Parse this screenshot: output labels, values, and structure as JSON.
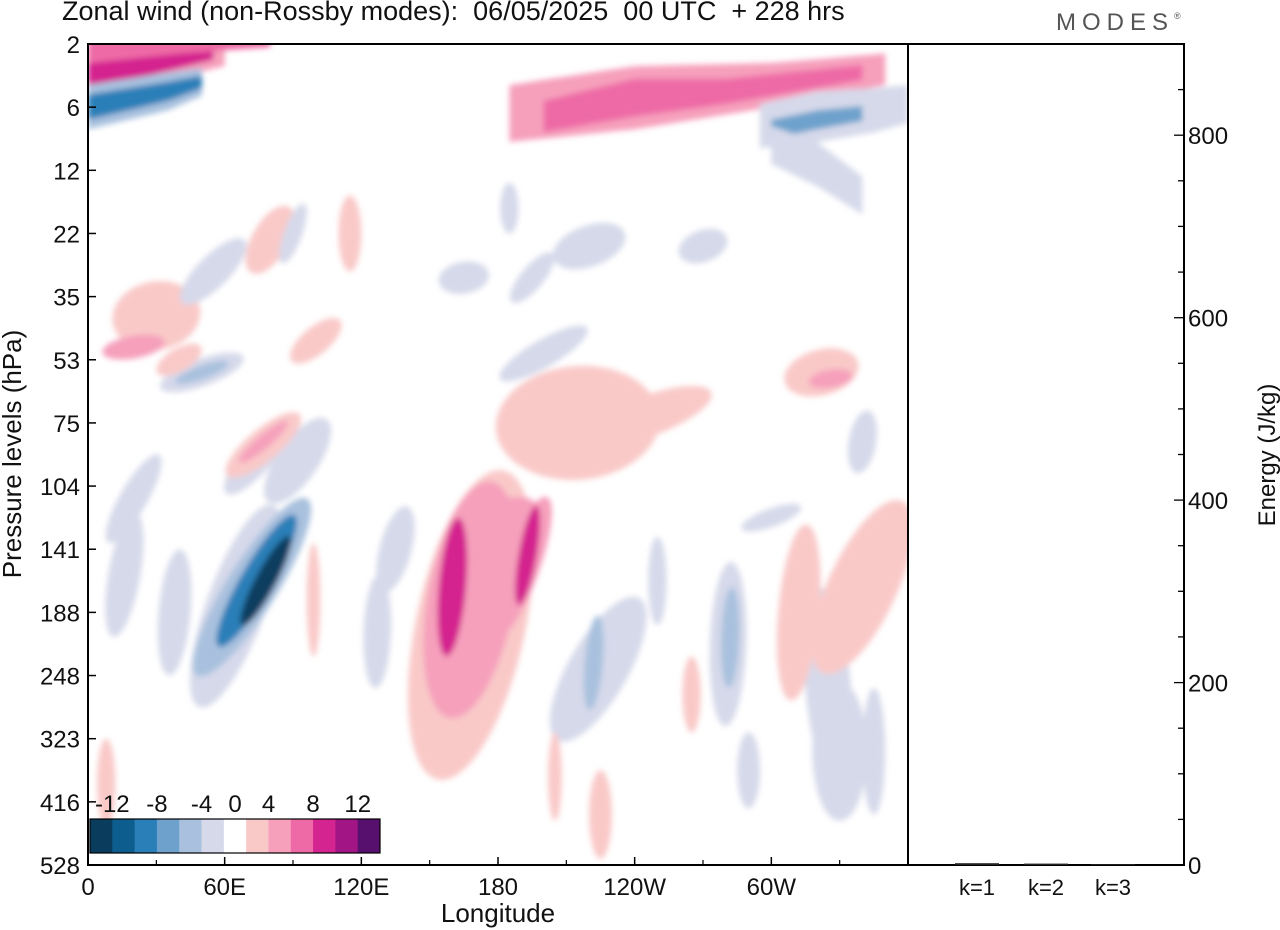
{
  "header": {
    "title": "Zonal wind (non-Rossby modes):  06/05/2025  00 UTC  + 228 hrs",
    "brand": "MODES"
  },
  "colors": {
    "levels": [
      "#0a3c5e",
      "#0d5e8f",
      "#2a7fb8",
      "#6ea2cc",
      "#a9c1de",
      "#d6d9ea",
      "#ffffff",
      "#f9c9c8",
      "#f6a0bc",
      "#ee6aa6",
      "#d4248f",
      "#a11585",
      "#57106e"
    ],
    "frame": "#000000"
  },
  "chart_data": [
    {
      "type": "heatmap",
      "xlabel": "Longitude",
      "ylabel": "Pressure levels (hPa)",
      "x_ticks": [
        "0",
        "60E",
        "120E",
        "180",
        "120W",
        "60W"
      ],
      "x_tick_values": [
        0,
        60,
        120,
        180,
        240,
        300
      ],
      "xlim": [
        0,
        360
      ],
      "y_ticks": [
        "2",
        "6",
        "12",
        "22",
        "35",
        "53",
        "75",
        "104",
        "141",
        "188",
        "248",
        "323",
        "416",
        "528"
      ],
      "colorbar": {
        "labels": [
          "-12",
          "-8",
          "-4",
          "0",
          "4",
          "8",
          "12"
        ],
        "bounds": [
          -14,
          -12,
          -10,
          -8,
          -6,
          -4,
          -2,
          2,
          4,
          6,
          8,
          10,
          12,
          14
        ]
      },
      "features": [
        {
          "lon": 78,
          "lev": 8.5,
          "w": 9,
          "h": 1.6,
          "angle": -62,
          "value": -13
        },
        {
          "lon": 74,
          "lev": 8.5,
          "w": 14,
          "h": 2.4,
          "angle": -60,
          "value": -9
        },
        {
          "lon": 72,
          "lev": 8.6,
          "w": 22,
          "h": 3.3,
          "angle": -58,
          "value": -5
        },
        {
          "lon": 65,
          "lev": 8.9,
          "w": 26,
          "h": 3.4,
          "angle": -70,
          "value": -3
        },
        {
          "lon": 160,
          "lev": 8.6,
          "w": 12,
          "h": 2.2,
          "angle": -85,
          "value": 8
        },
        {
          "lon": 168,
          "lev": 8.8,
          "w": 38,
          "h": 3.8,
          "angle": -80,
          "value": 5
        },
        {
          "lon": 168,
          "lev": 9.2,
          "w": 48,
          "h": 5.0,
          "angle": -78,
          "value": 3
        },
        {
          "lon": 178,
          "lev": 7.7,
          "w": 22,
          "h": 1.6,
          "angle": -30,
          "value": 4
        },
        {
          "lon": 193,
          "lev": 8.1,
          "w": 8,
          "h": 1.6,
          "angle": -80,
          "value": 8
        },
        {
          "lon": 190,
          "lev": 8.3,
          "w": 16,
          "h": 2.4,
          "angle": -70,
          "value": 5
        },
        {
          "lon": 222,
          "lev": 9.8,
          "w": 8,
          "h": 1.5,
          "angle": -85,
          "value": -5
        },
        {
          "lon": 224,
          "lev": 9.9,
          "w": 26,
          "h": 2.6,
          "angle": -60,
          "value": -3
        },
        {
          "lon": 282,
          "lev": 9.4,
          "w": 8,
          "h": 1.6,
          "angle": -88,
          "value": -5
        },
        {
          "lon": 281,
          "lev": 9.5,
          "w": 16,
          "h": 2.6,
          "angle": -88,
          "value": -3
        },
        {
          "lon": 325,
          "lev": 10.2,
          "w": 20,
          "h": 3.2,
          "angle": -95,
          "value": -3
        },
        {
          "lon": 340,
          "lev": 8.6,
          "w": 30,
          "h": 3.0,
          "angle": -65,
          "value": 3
        },
        {
          "lon": 312,
          "lev": 9.0,
          "w": 18,
          "h": 2.8,
          "angle": -85,
          "value": 3
        },
        {
          "lon": 99,
          "lev": 8.8,
          "w": 6,
          "h": 1.8,
          "angle": -90,
          "value": 3
        },
        {
          "lon": 127,
          "lev": 9.3,
          "w": 12,
          "h": 1.8,
          "angle": -88,
          "value": -3
        },
        {
          "lon": 135,
          "lev": 8.0,
          "w": 14,
          "h": 1.4,
          "angle": -75,
          "value": -3
        },
        {
          "lon": 16,
          "lev": 8.4,
          "w": 14,
          "h": 2.0,
          "angle": -80,
          "value": -3
        },
        {
          "lon": 38,
          "lev": 9.0,
          "w": 14,
          "h": 2.0,
          "angle": -85,
          "value": -3
        },
        {
          "lon": 20,
          "lev": 7.2,
          "w": 12,
          "h": 1.6,
          "angle": -60,
          "value": -3
        },
        {
          "lon": 92,
          "lev": 6.6,
          "w": 18,
          "h": 1.6,
          "angle": -55,
          "value": -3
        },
        {
          "lon": 75,
          "lev": 6.5,
          "w": 14,
          "h": 1.6,
          "angle": -50,
          "value": -3
        },
        {
          "lon": 77,
          "lev": 6.3,
          "w": 6,
          "h": 1.0,
          "angle": -40,
          "value": 5
        },
        {
          "lon": 77,
          "lev": 6.35,
          "w": 14,
          "h": 1.5,
          "angle": -40,
          "value": 3
        },
        {
          "lon": 50,
          "lev": 5.2,
          "w": 6,
          "h": 0.9,
          "angle": -20,
          "value": -5
        },
        {
          "lon": 50,
          "lev": 5.2,
          "w": 12,
          "h": 1.4,
          "angle": -20,
          "value": -3
        },
        {
          "lon": 30,
          "lev": 4.3,
          "w": 30,
          "h": 1.4,
          "angle": -10,
          "value": 3
        },
        {
          "lon": 20,
          "lev": 4.8,
          "w": 10,
          "h": 1.0,
          "angle": -10,
          "value": 4
        },
        {
          "lon": 215,
          "lev": 6.0,
          "w": 50,
          "h": 2.6,
          "angle": -5,
          "value": 3
        },
        {
          "lon": 245,
          "lev": 5.9,
          "w": 18,
          "h": 2.2,
          "angle": -20,
          "value": 3
        },
        {
          "lon": 322,
          "lev": 5.2,
          "w": 20,
          "h": 1.2,
          "angle": -15,
          "value": 3
        },
        {
          "lon": 326,
          "lev": 5.3,
          "w": 8,
          "h": 0.7,
          "angle": -10,
          "value": 5
        },
        {
          "lon": 340,
          "lev": 6.3,
          "w": 12,
          "h": 1.0,
          "angle": -80,
          "value": -3
        },
        {
          "lon": 200,
          "lev": 4.9,
          "w": 12,
          "h": 1.6,
          "angle": -30,
          "value": -3
        },
        {
          "lon": 220,
          "lev": 3.2,
          "w": 18,
          "h": 1.2,
          "angle": -20,
          "value": -3
        },
        {
          "lon": 165,
          "lev": 3.7,
          "w": 14,
          "h": 0.8,
          "angle": -10,
          "value": -3
        },
        {
          "lon": 100,
          "lev": 4.7,
          "w": 12,
          "h": 1.0,
          "angle": -40,
          "value": 3
        },
        {
          "lon": 80,
          "lev": 3.1,
          "w": 16,
          "h": 1.2,
          "angle": -60,
          "value": 3
        },
        {
          "lon": 55,
          "lev": 3.6,
          "w": 14,
          "h": 1.4,
          "angle": -45,
          "value": -3
        },
        {
          "lon": 90,
          "lev": 3.0,
          "w": 8,
          "h": 1.0,
          "angle": -70,
          "value": -3
        },
        {
          "lon": 195,
          "lev": 3.7,
          "w": 10,
          "h": 1.0,
          "angle": -50,
          "value": -3
        },
        {
          "lon": 330,
          "lev": 11.2,
          "w": 24,
          "h": 2.2,
          "angle": -90,
          "value": -3
        },
        {
          "lon": 345,
          "lev": 11.2,
          "w": 10,
          "h": 2.0,
          "angle": -90,
          "value": -3
        },
        {
          "lon": 225,
          "lev": 12.2,
          "w": 10,
          "h": 1.4,
          "angle": -90,
          "value": 3
        },
        {
          "lon": 290,
          "lev": 11.5,
          "w": 10,
          "h": 1.2,
          "angle": -90,
          "value": -3
        },
        {
          "lon": 8,
          "lev": 11.7,
          "w": 8,
          "h": 1.4,
          "angle": -90,
          "value": 3
        },
        {
          "lon": 270,
          "lev": 3.2,
          "w": 14,
          "h": 0.8,
          "angle": -20,
          "value": -3
        },
        {
          "lon": 350,
          "lev": 8.2,
          "w": 16,
          "h": 1.6,
          "angle": -70,
          "value": 3
        },
        {
          "lon": 115,
          "lev": 3.0,
          "w": 10,
          "h": 1.2,
          "angle": -90,
          "value": 3
        },
        {
          "lon": 185,
          "lev": 2.6,
          "w": 8,
          "h": 0.8,
          "angle": -90,
          "value": -3
        },
        {
          "lon": 300,
          "lev": 7.5,
          "w": 8,
          "h": 1.0,
          "angle": -20,
          "value": -3
        },
        {
          "lon": 40,
          "lev": 5.0,
          "w": 10,
          "h": 0.8,
          "angle": -30,
          "value": 3
        },
        {
          "lon": 250,
          "lev": 8.5,
          "w": 8,
          "h": 1.4,
          "angle": -90,
          "value": -3
        },
        {
          "lon": 265,
          "lev": 10.3,
          "w": 8,
          "h": 1.2,
          "angle": -90,
          "value": 3
        },
        {
          "lon": 205,
          "lev": 11.6,
          "w": 6,
          "h": 1.4,
          "angle": -90,
          "value": 3
        }
      ],
      "jets": [
        {
          "lon": [
            0,
            30,
            60
          ],
          "lev": [
            0.45,
            0.2,
            0.05
          ],
          "halfwidth": [
            0.45,
            0.4,
            0.3
          ],
          "value": 5
        },
        {
          "lon": [
            0,
            30,
            55
          ],
          "lev": [
            0.45,
            0.25,
            0.1
          ],
          "halfwidth": [
            0.28,
            0.22,
            0.15
          ],
          "value": 8
        },
        {
          "lon": [
            0,
            35,
            50
          ],
          "lev": [
            1.0,
            0.75,
            0.6
          ],
          "halfwidth": [
            0.35,
            0.3,
            0.22
          ],
          "value": -5
        },
        {
          "lon": [
            0,
            35,
            50
          ],
          "lev": [
            1.0,
            0.75,
            0.6
          ],
          "halfwidth": [
            0.2,
            0.15,
            0.1
          ],
          "value": -9
        },
        {
          "lon": [
            185,
            240,
            300,
            350
          ],
          "lev": [
            1.1,
            0.85,
            0.65,
            0.4
          ],
          "halfwidth": [
            0.45,
            0.5,
            0.35,
            0.25
          ],
          "value": 4
        },
        {
          "lon": [
            200,
            240,
            280,
            340
          ],
          "lev": [
            1.15,
            0.85,
            0.75,
            0.45
          ],
          "halfwidth": [
            0.25,
            0.3,
            0.2,
            0.12
          ],
          "value": 7
        },
        {
          "lon": [
            295,
            320,
            345,
            360
          ],
          "lev": [
            1.3,
            1.15,
            1.05,
            0.95
          ],
          "halfwidth": [
            0.35,
            0.4,
            0.35,
            0.3
          ],
          "value": -4
        },
        {
          "lon": [
            300,
            320,
            340
          ],
          "lev": [
            1.35,
            1.2,
            1.1
          ],
          "halfwidth": [
            0.15,
            0.15,
            0.12
          ],
          "value": -7
        },
        {
          "lon": [
            300,
            320,
            340
          ],
          "lev": [
            1.6,
            1.9,
            2.4
          ],
          "halfwidth": [
            0.3,
            0.35,
            0.3
          ],
          "value": -4
        },
        {
          "lon": [
            0,
            40,
            80
          ],
          "lev": [
            0.1,
            -0.05,
            -0.1
          ],
          "halfwidth": [
            0.2,
            0.2,
            0.15
          ],
          "value": 6
        }
      ]
    },
    {
      "type": "bar",
      "categories": [
        "k=1",
        "k=2",
        "k=3"
      ],
      "values": [
        2,
        1.5,
        1
      ],
      "ylabel": "Energy (J/kg)",
      "ylim": [
        0,
        900
      ],
      "y_ticks": [
        0,
        200,
        400,
        600,
        800
      ]
    }
  ]
}
